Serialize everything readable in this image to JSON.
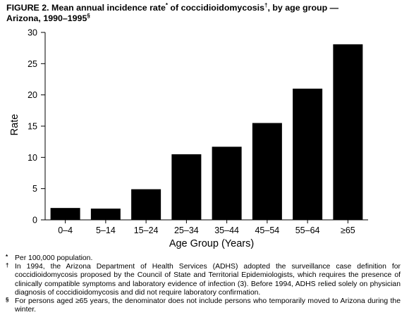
{
  "title": {
    "line1": "FIGURE 2. Mean annual incidence rate",
    "star": "*",
    "line1b": " of coccidioidomycosis",
    "dagger": "†",
    "line1c": ", by age group —",
    "line2": "Arizona, 1990–1995",
    "section": "§"
  },
  "chart_data": {
    "type": "bar",
    "categories": [
      "0–4",
      "5–14",
      "15–24",
      "25–34",
      "35–44",
      "45–54",
      "55–64",
      "≥65"
    ],
    "values": [
      1.9,
      1.8,
      4.9,
      10.5,
      11.7,
      15.5,
      21.0,
      28.1
    ],
    "xlabel": "Age Group (Years)",
    "ylabel": "Rate",
    "ylim": [
      0,
      30
    ],
    "yticks": [
      0,
      5,
      10,
      15,
      20,
      25,
      30
    ],
    "bar_color": "#000000",
    "grid": false
  },
  "footnotes": [
    {
      "mark": "*",
      "text": "Per 100,000 population."
    },
    {
      "mark": "†",
      "text": "In 1994, the Arizona Department of Health Services (ADHS) adopted the surveillance case definition for coccidioidomycosis proposed by the Council of State and Territorial Epidemiologists, which requires the presence of clinically compatible symptoms and laboratory evidence of infection (3). Before 1994, ADHS relied solely on physician diagnosis of coccidioidomycosis and did not require laboratory confirmation."
    },
    {
      "mark": "§",
      "text": "For persons aged ≥65 years, the denominator does not include persons who temporarily moved to Arizona during the winter."
    }
  ]
}
